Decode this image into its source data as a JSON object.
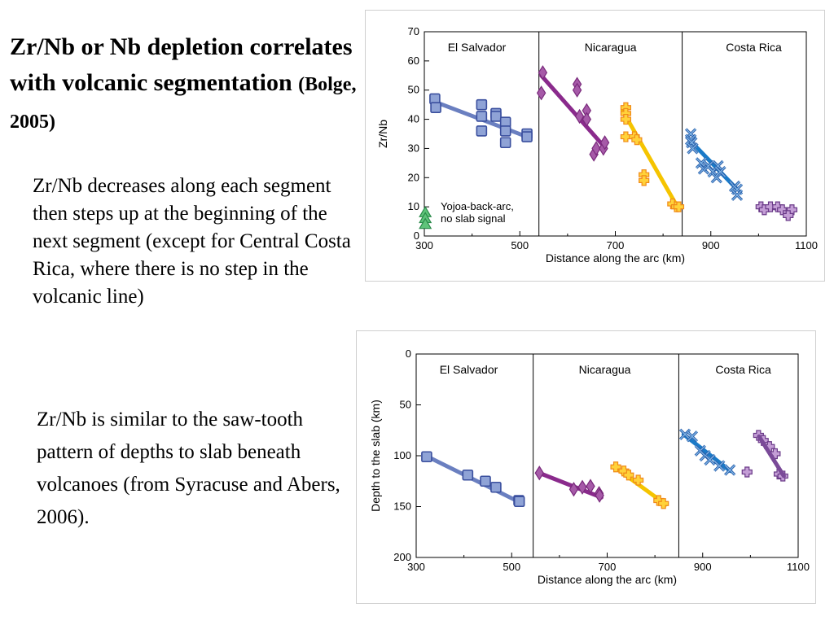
{
  "slide": {
    "title_main": "Zr/Nb or Nb depletion correlates with volcanic segmentation",
    "title_citation": "(Bolge, 2005)",
    "paragraph1": "Zr/Nb decreases along each segment then steps up at the beginning of the next segment (except for Central Costa Rica, where there is no step in the volcanic line)",
    "paragraph2": "Zr/Nb is similar to the saw-tooth pattern of  depths to slab beneath volcanoes (from Syracuse and Abers, 2006)."
  },
  "chart_data": [
    {
      "type": "scatter",
      "xlabel": "Distance along the arc (km)",
      "ylabel": "Zr/Nb",
      "xlim": [
        300,
        1100
      ],
      "ylim": [
        0,
        70
      ],
      "y_inverted": false,
      "xticks": [
        300,
        500,
        700,
        900,
        1100
      ],
      "yticks": [
        0,
        10,
        20,
        30,
        40,
        50,
        60,
        70
      ],
      "segment_boundaries": [
        540,
        840
      ],
      "segment_labels": [
        {
          "text": "El Salvador",
          "x": 410
        },
        {
          "text": "Nicaragua",
          "x": 690
        },
        {
          "text": "Costa Rica",
          "x": 990
        }
      ],
      "annotation": {
        "lines": [
          "Yojoa-back-arc,",
          "no slab signal"
        ],
        "x": 310,
        "y": 10
      },
      "series": [
        {
          "color": "#8fa3d6",
          "stroke": "#3a4f9e",
          "marker": "square",
          "points": [
            [
              322,
              47
            ],
            [
              324,
              44
            ],
            [
              420,
              45
            ],
            [
              420,
              41
            ],
            [
              420,
              36
            ],
            [
              450,
              42
            ],
            [
              450,
              41
            ],
            [
              470,
              39
            ],
            [
              470,
              36
            ],
            [
              470,
              32
            ],
            [
              515,
              35
            ],
            [
              515,
              34
            ]
          ],
          "line": [
            [
              322,
              46
            ],
            [
              515,
              34
            ]
          ],
          "line_color": "#6a7fc0"
        },
        {
          "color": "#a65aa8",
          "stroke": "#7a2a7c",
          "marker": "diamond",
          "points": [
            [
              548,
              56
            ],
            [
              545,
              49
            ],
            [
              620,
              52
            ],
            [
              620,
              50
            ],
            [
              625,
              41
            ],
            [
              640,
              43
            ],
            [
              640,
              40
            ],
            [
              655,
              28
            ],
            [
              660,
              30
            ],
            [
              675,
              30
            ],
            [
              678,
              32
            ]
          ],
          "line": [
            [
              545,
              55
            ],
            [
              680,
              30
            ]
          ],
          "line_color": "#8a2a8c"
        },
        {
          "color": "#ffd23a",
          "stroke": "#f08a18",
          "marker": "plus",
          "points": [
            [
              722,
              44
            ],
            [
              722,
              42
            ],
            [
              722,
              40
            ],
            [
              722,
              34
            ],
            [
              740,
              34
            ],
            [
              745,
              33
            ],
            [
              760,
              21
            ],
            [
              760,
              19
            ],
            [
              820,
              11
            ],
            [
              828,
              10
            ],
            [
              833,
              10
            ]
          ],
          "line": [
            [
              715,
              43
            ],
            [
              830,
              10
            ]
          ],
          "line_color": "#f5c400"
        },
        {
          "color": "#7fb4e6",
          "stroke": "#2a5ea8",
          "marker": "x",
          "points": [
            [
              858,
              35
            ],
            [
              858,
              33
            ],
            [
              860,
              32
            ],
            [
              862,
              30
            ],
            [
              880,
              25
            ],
            [
              885,
              23
            ],
            [
              895,
              24
            ],
            [
              905,
              22
            ],
            [
              912,
              20
            ],
            [
              915,
              24
            ],
            [
              920,
              22
            ],
            [
              950,
              17
            ],
            [
              955,
              16
            ],
            [
              955,
              14
            ]
          ],
          "line": [
            [
              855,
              33
            ],
            [
              955,
              16
            ]
          ],
          "line_color": "#1a7ac8"
        },
        {
          "color": "#c49ed6",
          "stroke": "#6a3a88",
          "marker": "plus",
          "points": [
            [
              1005,
              10
            ],
            [
              1012,
              9
            ],
            [
              1025,
              10
            ],
            [
              1040,
              10
            ],
            [
              1050,
              9
            ],
            [
              1062,
              8
            ],
            [
              1070,
              9
            ],
            [
              1062,
              7
            ]
          ],
          "line": [
            [
              1000,
              10
            ],
            [
              1070,
              9
            ]
          ],
          "line_color": "#7a4a98"
        },
        {
          "color": "#5fc47a",
          "stroke": "#2a8a4a",
          "marker": "triangle",
          "points": [
            [
              302,
              8
            ],
            [
              302,
              6
            ],
            [
              302,
              4
            ]
          ],
          "line": null,
          "line_color": null
        }
      ]
    },
    {
      "type": "scatter",
      "xlabel": "Distance along the arc (km)",
      "ylabel": "Depth to the slab (km)",
      "xlim": [
        300,
        1100
      ],
      "ylim": [
        0,
        200
      ],
      "y_inverted": true,
      "xticks": [
        300,
        500,
        700,
        900,
        1100
      ],
      "yticks": [
        0,
        50,
        100,
        150,
        200
      ],
      "segment_boundaries": [
        545,
        850
      ],
      "segment_labels": [
        {
          "text": "El Salvador",
          "x": 410
        },
        {
          "text": "Nicaragua",
          "x": 695
        },
        {
          "text": "Costa Rica",
          "x": 985
        }
      ],
      "annotation": null,
      "series": [
        {
          "color": "#8fa3d6",
          "stroke": "#3a4f9e",
          "marker": "square",
          "points": [
            [
              322,
              101
            ],
            [
              408,
              119
            ],
            [
              445,
              125
            ],
            [
              467,
              131
            ],
            [
              515,
              144
            ],
            [
              516,
              145
            ]
          ],
          "line": [
            [
              320,
              100
            ],
            [
              518,
              146
            ]
          ],
          "line_color": "#6a7fc0"
        },
        {
          "color": "#a65aa8",
          "stroke": "#7a2a7c",
          "marker": "diamond",
          "points": [
            [
              558,
              117
            ],
            [
              630,
              133
            ],
            [
              648,
              131
            ],
            [
              665,
              130
            ],
            [
              683,
              137
            ],
            [
              684,
              139
            ]
          ],
          "line": [
            [
              558,
              117
            ],
            [
              688,
              141
            ]
          ],
          "line_color": "#8a2a8c"
        },
        {
          "color": "#ffd23a",
          "stroke": "#f08a18",
          "marker": "plus",
          "points": [
            [
              718,
              111
            ],
            [
              735,
              115
            ],
            [
              745,
              119
            ],
            [
              765,
              124
            ],
            [
              808,
              144
            ],
            [
              818,
              147
            ]
          ],
          "line": [
            [
              715,
              111
            ],
            [
              823,
              148
            ]
          ],
          "line_color": "#f5c400"
        },
        {
          "color": "#7fb4e6",
          "stroke": "#2a5ea8",
          "marker": "x",
          "points": [
            [
              863,
              79
            ],
            [
              878,
              81
            ],
            [
              895,
              95
            ],
            [
              905,
              100
            ],
            [
              915,
              104
            ],
            [
              935,
              110
            ],
            [
              957,
              114
            ]
          ],
          "line": [
            [
              860,
              79
            ],
            [
              958,
              115
            ]
          ],
          "line_color": "#1a7ac8"
        },
        {
          "color": "#c49ed6",
          "stroke": "#6a3a88",
          "marker": "plus",
          "points": [
            [
              993,
              116
            ],
            [
              1017,
              80
            ],
            [
              1027,
              85
            ],
            [
              1040,
              91
            ],
            [
              1052,
              98
            ],
            [
              1060,
              118
            ],
            [
              1068,
              120
            ]
          ],
          "line": null,
          "line_color": null
        },
        {
          "color": "#c49ed6",
          "stroke": "#6a3a88",
          "marker": "plus",
          "points": [],
          "line": [
            [
              1018,
              81
            ],
            [
              1070,
              120
            ]
          ],
          "line_color": "#7a4a98"
        }
      ]
    }
  ]
}
